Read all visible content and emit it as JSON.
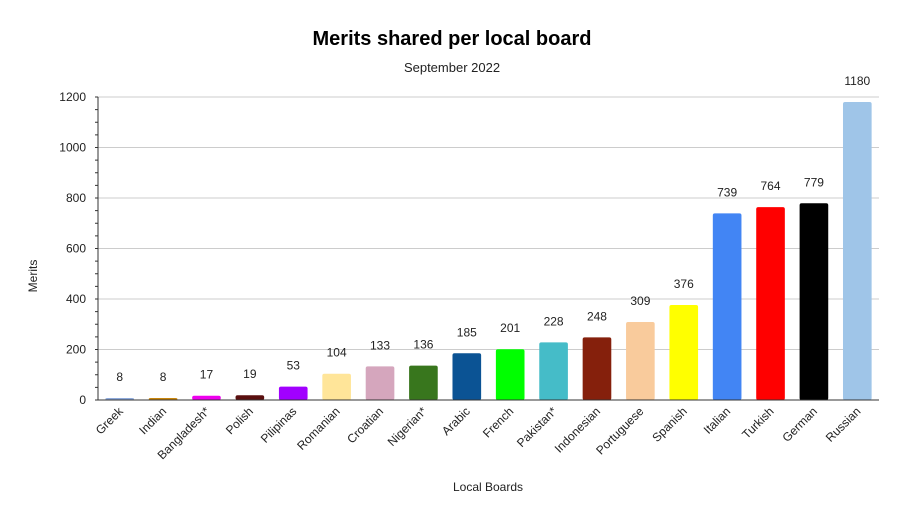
{
  "chart_data": {
    "type": "bar",
    "title": "Merits shared per local board",
    "subtitle": "September 2022",
    "xlabel": "Local Boards",
    "ylabel": "Merits",
    "ylim": [
      0,
      1200
    ],
    "yticks": [
      0,
      200,
      400,
      600,
      800,
      1000,
      1200
    ],
    "grid": true,
    "legend": "none",
    "categories": [
      "Greek",
      "Indian",
      "Bangladesh*",
      "Polish",
      "Pilipinas",
      "Romanian",
      "Croatian",
      "Nigerian*",
      "Arabic",
      "French",
      "Pakistan*",
      "Indonesian",
      "Portuguese",
      "Spanish",
      "Italian",
      "Turkish",
      "German",
      "Russian"
    ],
    "values": [
      8,
      8,
      17,
      19,
      53,
      104,
      133,
      136,
      185,
      201,
      228,
      248,
      309,
      376,
      739,
      764,
      779,
      1180
    ],
    "colors": [
      "#8eaadb",
      "#c9860c",
      "#ee00ee",
      "#5a0f0f",
      "#a100ff",
      "#ffe599",
      "#d5a6bd",
      "#38761d",
      "#0b5394",
      "#00ff00",
      "#45bcc8",
      "#85200c",
      "#f9cb9c",
      "#ffff00",
      "#4285f4",
      "#ff0000",
      "#000000",
      "#9fc5e8"
    ]
  }
}
